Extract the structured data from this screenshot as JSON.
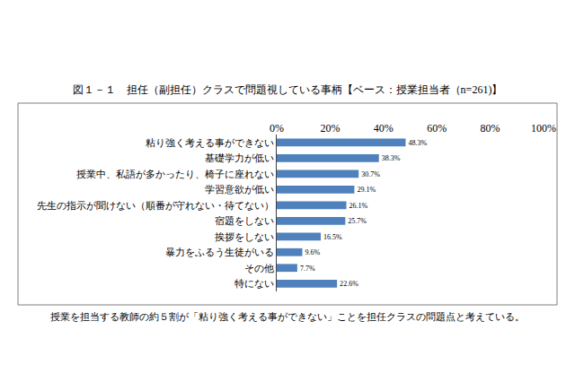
{
  "chart_data": {
    "type": "bar",
    "orientation": "horizontal",
    "title": "図１－１　担任（副担任）クラスで問題視している事柄【ベース：授業担当者（n=261)】",
    "caption": "授業を担当する教師の約５割が「粘り強く考える事ができない」ことを担任クラスの問題点と考えている。",
    "categories": [
      "粘り強く考える事ができない",
      "基礎学力が低い",
      "授業中、私語が多かったり、椅子に座れない",
      "学習意欲が低い",
      "先生の指示が聞けない（順番が守れない・待てない）",
      "宿題をしない",
      "挨拶をしない",
      "暴力をふるう生徒がいる",
      "その他",
      "特にない"
    ],
    "values": [
      48.3,
      38.3,
      30.7,
      29.1,
      26.1,
      25.7,
      16.5,
      9.6,
      7.7,
      22.6
    ],
    "value_labels": [
      "48.3%",
      "38.3%",
      "30.7%",
      "29.1%",
      "26.1%",
      "25.7%",
      "16.5%",
      "9.6%",
      "7.7%",
      "22.6%"
    ],
    "data_labels": true,
    "color": "#4f81bd",
    "xlim": [
      0,
      100
    ],
    "xticks": [
      {
        "value": 0,
        "label": "0%"
      },
      {
        "value": 20,
        "label": "20%"
      },
      {
        "value": 40,
        "label": "40%"
      },
      {
        "value": 60,
        "label": "60%"
      },
      {
        "value": 80,
        "label": "80%"
      },
      {
        "value": 100,
        "label": "100%"
      }
    ],
    "grid": false
  }
}
